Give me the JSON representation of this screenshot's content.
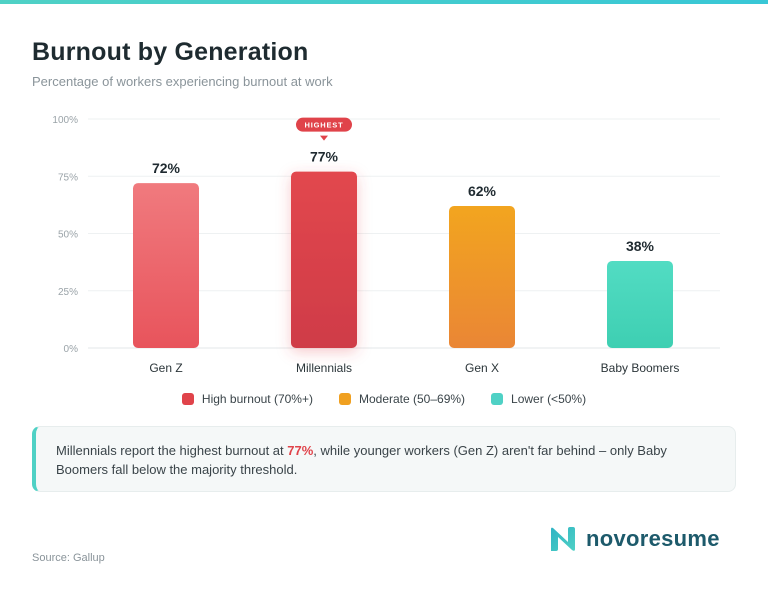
{
  "header": {
    "title": "Burnout by Generation",
    "subtitle": "Percentage of workers experiencing burnout at work"
  },
  "chart_data": {
    "type": "bar",
    "title": "Burnout by Generation",
    "subtitle": "Percentage of workers experiencing burnout at work",
    "xlabel": "",
    "ylabel": "",
    "categories": [
      "Gen Z",
      "Millennials",
      "Gen X",
      "Baby Boomers"
    ],
    "values": [
      72,
      77,
      62,
      38
    ],
    "value_labels": [
      "72%",
      "77%",
      "62%",
      "38%"
    ],
    "value_groups": [
      "high",
      "high",
      "moderate",
      "lower"
    ],
    "ylim": [
      0,
      100
    ],
    "y_ticks": [
      0,
      25,
      50,
      75,
      100
    ],
    "y_tick_labels": [
      "0%",
      "25%",
      "50%",
      "75%",
      "100%"
    ],
    "grid": true,
    "annotation": {
      "category": "Millennials",
      "text": "HIGHEST"
    },
    "legend_position": "bottom",
    "legend": [
      {
        "key": "high",
        "label": "High burnout (70%+)",
        "color": "#e0434a"
      },
      {
        "key": "moderate",
        "label": "Moderate (50–69%)",
        "color": "#f0a020"
      },
      {
        "key": "lower",
        "label": "Lower (<50%)",
        "color": "#4fd1c5"
      }
    ]
  },
  "callout": {
    "before": "Millennials report the highest burnout at ",
    "highlight": "77%",
    "after": ", while younger workers (Gen Z) aren't far behind – only Baby Boomers fall below the majority threshold."
  },
  "footer": {
    "source": "Source: Gallup",
    "brand": "novoresume"
  },
  "colors": {
    "accent": "#4fd1c5",
    "brand": "#1d5a6b",
    "highlight": "#e0434a"
  }
}
